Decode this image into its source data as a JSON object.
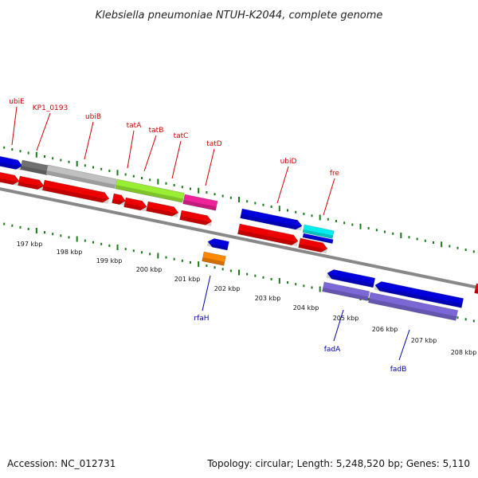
{
  "title": "Klebsiella pneumoniae NTUH-K2044, complete genome",
  "footer": {
    "accession": "Accession: NC_012731",
    "summary": "Topology: circular; Length: 5,248,520 bp; Genes: 5,110"
  },
  "ruler": {
    "unit": "kbp",
    "ticks": [
      {
        "label": "197 kbp"
      },
      {
        "label": "198 kbp"
      },
      {
        "label": "199 kbp"
      },
      {
        "label": "200 kbp"
      },
      {
        "label": "201 kbp"
      },
      {
        "label": "202 kbp"
      },
      {
        "label": "203 kbp"
      },
      {
        "label": "204 kbp"
      },
      {
        "label": "205 kbp"
      },
      {
        "label": "206 kbp"
      },
      {
        "label": "207 kbp"
      },
      {
        "label": "208 kbp"
      }
    ]
  },
  "genes_forward": [
    {
      "name": "ubiE"
    },
    {
      "name": "KP1_0193"
    },
    {
      "name": "ubiB"
    },
    {
      "name": "tatA"
    },
    {
      "name": "tatB"
    },
    {
      "name": "tatC"
    },
    {
      "name": "tatD"
    },
    {
      "name": "ubiD"
    },
    {
      "name": "fre"
    }
  ],
  "genes_reverse": [
    {
      "name": "rfaH"
    },
    {
      "name": "fadA"
    },
    {
      "name": "fadB"
    }
  ],
  "colors": {
    "forward_label": "#cc0000",
    "reverse_label": "#0000aa",
    "cds_red": "#ee0000",
    "cds_blue": "#0000dd",
    "cds_purple": "#7b68d6",
    "cds_green": "#99ee33",
    "cds_magenta": "#ee2299",
    "cds_cyan": "#00eeee",
    "cds_orange": "#ff8800",
    "cds_grey_light": "#c0c0c0",
    "cds_grey_dark": "#707070",
    "backbone": "#888888",
    "tick": "#1a7a1a"
  }
}
